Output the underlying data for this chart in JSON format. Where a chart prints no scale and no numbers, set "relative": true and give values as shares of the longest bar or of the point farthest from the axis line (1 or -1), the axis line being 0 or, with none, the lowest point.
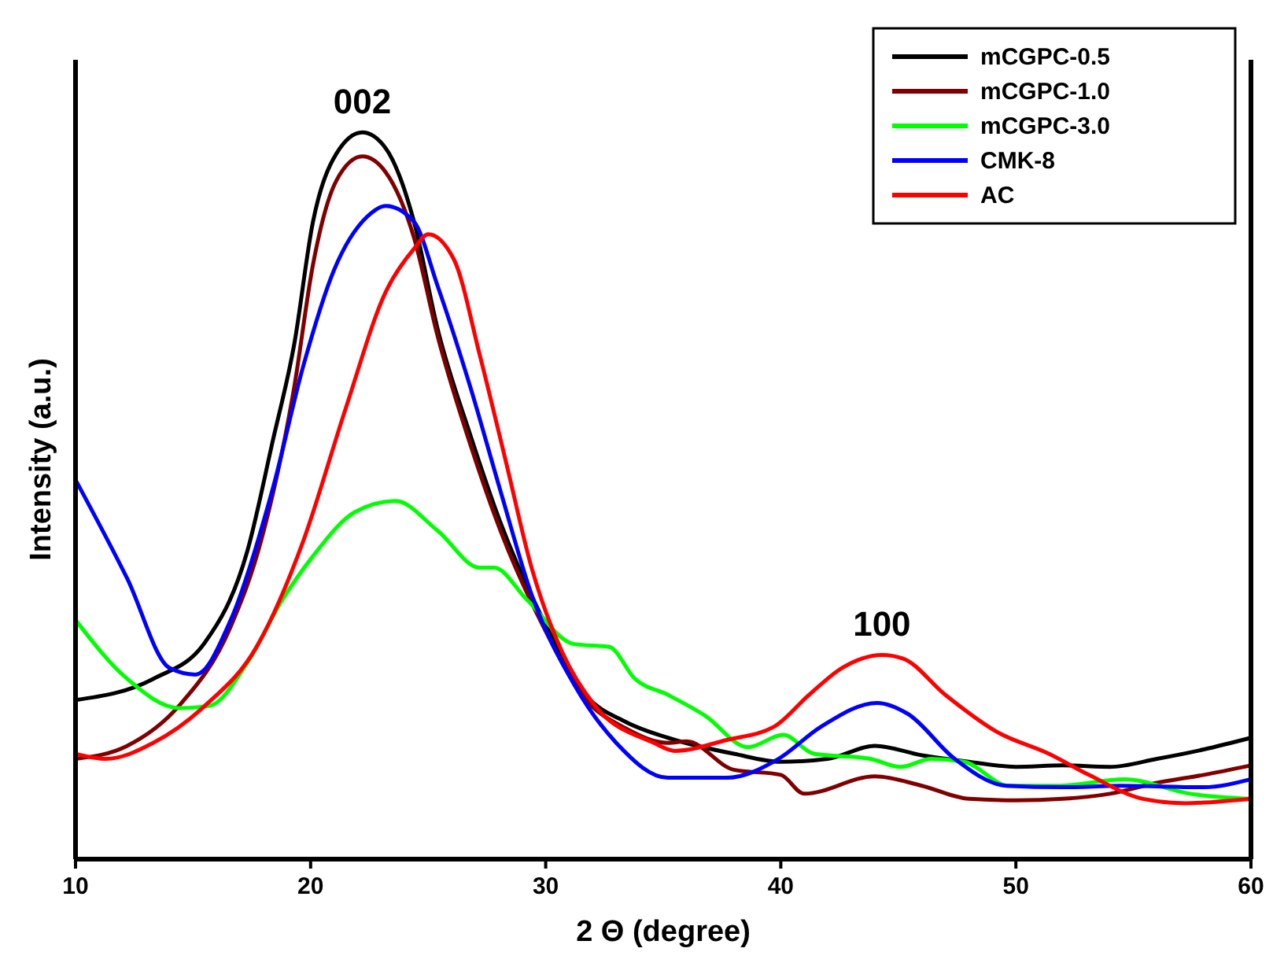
{
  "chart_data": {
    "type": "line",
    "relative": true,
    "xlabel": "2 Θ (degree)",
    "ylabel": "Intensity (a.u.)",
    "xlim": [
      10,
      60
    ],
    "xticks": [
      10,
      20,
      30,
      40,
      50,
      60
    ],
    "legend": "top right",
    "line_style": "solid",
    "marker": "none",
    "grid": false,
    "annotations": [
      {
        "text": "002",
        "x": 22.2,
        "y": 1.0
      },
      {
        "text": "100",
        "x": 44.3,
        "y": 0.281
      }
    ],
    "series": [
      {
        "name": "mCGPC-0.5",
        "color": "#000000",
        "x": [
          10,
          13.3,
          15.5,
          17.3,
          18.4,
          19.3,
          20.1,
          21.1,
          22.2,
          23.2,
          24.4,
          25.4,
          26.8,
          28.1,
          29.9,
          31.7,
          33.4,
          35.2,
          38,
          40,
          42,
          44,
          46,
          48,
          50,
          52,
          54,
          56,
          58,
          60
        ],
        "values": [
          0.219,
          0.248,
          0.298,
          0.423,
          0.577,
          0.708,
          0.877,
          0.971,
          1.0,
          0.978,
          0.877,
          0.73,
          0.583,
          0.461,
          0.329,
          0.226,
          0.189,
          0.167,
          0.145,
          0.134,
          0.138,
          0.156,
          0.143,
          0.134,
          0.127,
          0.129,
          0.127,
          0.138,
          0.151,
          0.167
        ]
      },
      {
        "name": "mCGPC-1.0",
        "color": "#800000",
        "x": [
          10,
          12.2,
          14.4,
          16.6,
          17.9,
          19.3,
          20.1,
          21.1,
          22.2,
          23.2,
          24.4,
          25.4,
          26.8,
          28.1,
          29.9,
          31.7,
          33.4,
          35.2,
          36,
          38,
          40,
          41,
          44,
          46,
          48,
          50,
          52,
          54,
          56,
          58,
          60
        ],
        "values": [
          0.138,
          0.156,
          0.211,
          0.32,
          0.439,
          0.649,
          0.818,
          0.934,
          0.967,
          0.945,
          0.855,
          0.72,
          0.57,
          0.45,
          0.32,
          0.22,
          0.18,
          0.16,
          0.162,
          0.123,
          0.116,
          0.09,
          0.114,
          0.101,
          0.083,
          0.081,
          0.083,
          0.09,
          0.105,
          0.116,
          0.129
        ]
      },
      {
        "name": "mCGPC-3.0",
        "color": "#00ff00",
        "x": [
          10,
          12.2,
          14.4,
          15.7,
          17.3,
          18.8,
          20.1,
          21.9,
          23.6,
          25.4,
          27.2,
          27.8,
          29.2,
          31.2,
          32.7,
          33.8,
          35.2,
          36.8,
          38.6,
          40.1,
          41.4,
          43.8,
          45.1,
          46.4,
          47.8,
          49.7,
          51.9,
          54.6,
          57.4,
          60
        ],
        "values": [
          0.329,
          0.248,
          0.208,
          0.211,
          0.27,
          0.357,
          0.417,
          0.478,
          0.493,
          0.452,
          0.401,
          0.401,
          0.357,
          0.296,
          0.292,
          0.248,
          0.226,
          0.197,
          0.154,
          0.171,
          0.145,
          0.138,
          0.127,
          0.138,
          0.134,
          0.101,
          0.101,
          0.11,
          0.09,
          0.083
        ]
      },
      {
        "name": "CMK-8",
        "color": "#0000ff",
        "x": [
          10,
          12.2,
          14,
          15.1,
          16.6,
          18.4,
          19.7,
          21,
          22.4,
          23.2,
          24.4,
          25.4,
          26.8,
          28.1,
          29.4,
          31.2,
          33,
          35.2,
          37.7,
          39.9,
          41.7,
          44.1,
          45.4,
          47.4,
          49.6,
          52,
          54.5,
          58,
          60
        ],
        "values": [
          0.522,
          0.386,
          0.263,
          0.254,
          0.329,
          0.511,
          0.68,
          0.811,
          0.884,
          0.899,
          0.877,
          0.789,
          0.649,
          0.504,
          0.364,
          0.241,
          0.16,
          0.112,
          0.112,
          0.138,
          0.182,
          0.215,
          0.2,
          0.138,
          0.101,
          0.099,
          0.101,
          0.099,
          0.11
        ]
      },
      {
        "name": "AC",
        "color": "#ff0000",
        "x": [
          10,
          11.3,
          13.3,
          15.5,
          17.7,
          19.7,
          21.5,
          23.2,
          24.4,
          25,
          26.1,
          27.2,
          28.3,
          29.4,
          30.7,
          32.1,
          34.6,
          35.5,
          37.7,
          39.7,
          41.2,
          42.6,
          44.3,
          45.2,
          47,
          49.2,
          51.4,
          53.1,
          55.4,
          57.2,
          60
        ],
        "values": [
          0.145,
          0.138,
          0.16,
          0.211,
          0.292,
          0.439,
          0.621,
          0.781,
          0.84,
          0.86,
          0.825,
          0.693,
          0.548,
          0.401,
          0.285,
          0.211,
          0.16,
          0.149,
          0.164,
          0.182,
          0.226,
          0.263,
          0.281,
          0.276,
          0.226,
          0.175,
          0.145,
          0.116,
          0.083,
          0.077,
          0.083
        ]
      }
    ]
  }
}
